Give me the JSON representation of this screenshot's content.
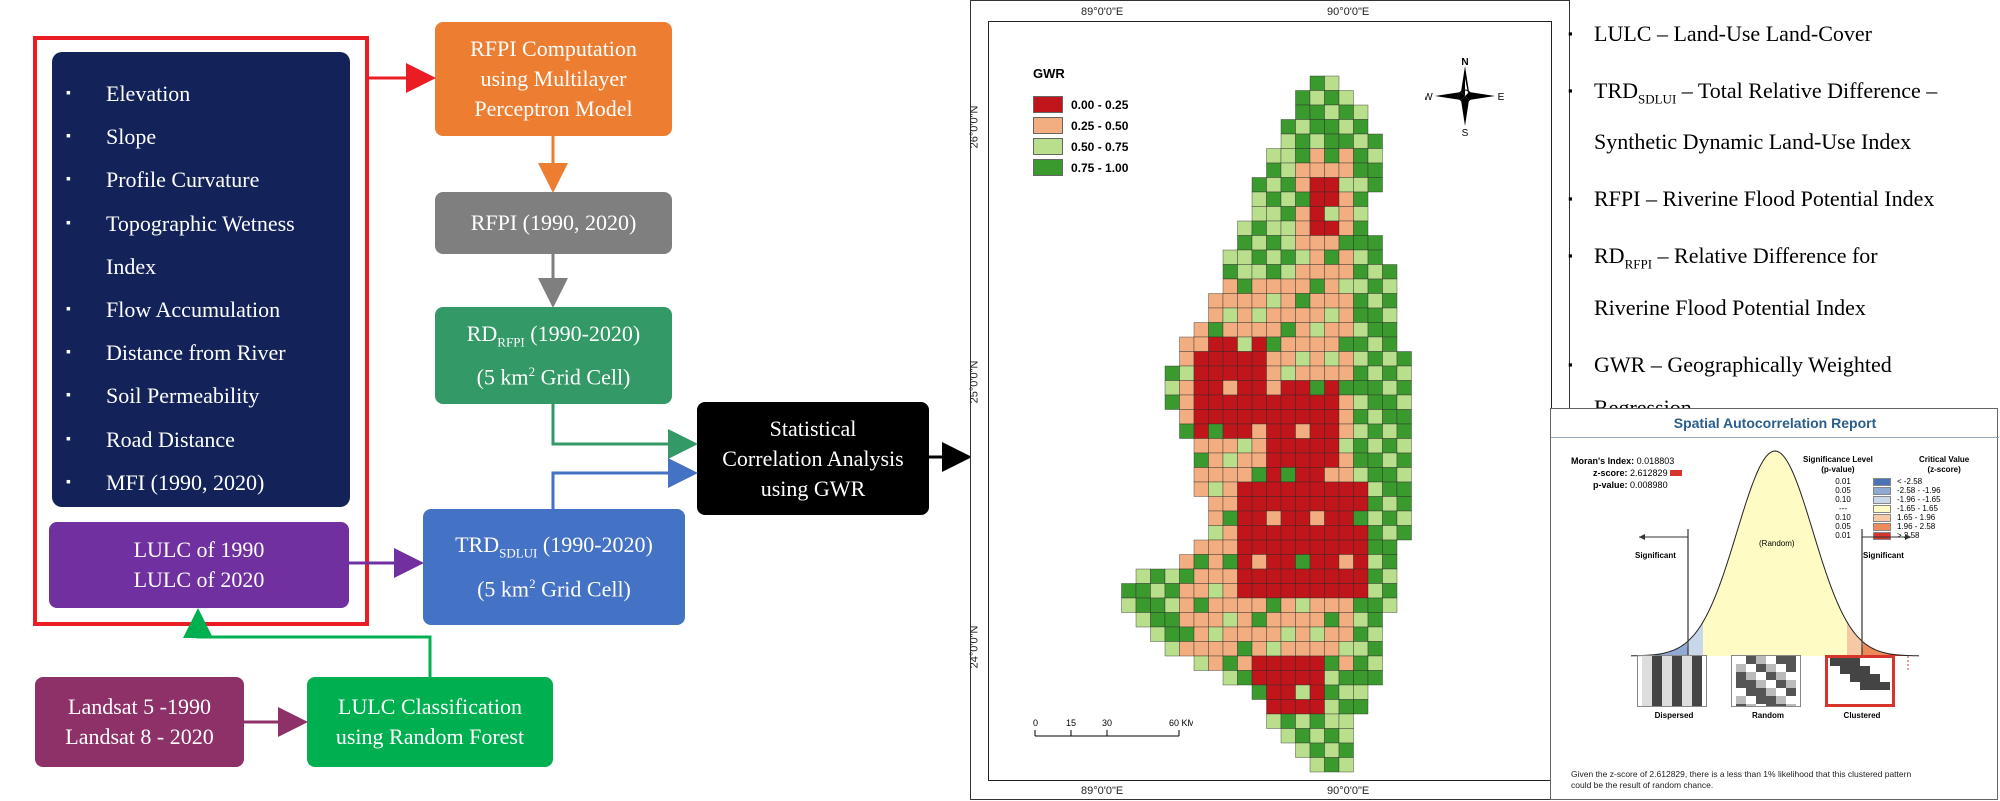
{
  "flowchart": {
    "factors": [
      "Elevation",
      "Slope",
      "Profile Curvature",
      "Topographic Wetness",
      "Index",
      "Flow Accumulation",
      "Distance from River",
      "Soil Permeability",
      "Road Distance",
      "MFI (1990, 2020)"
    ],
    "bullet": "▪",
    "lulc_years": [
      "LULC of 1990",
      "LULC of 2020"
    ],
    "rfpi_computation": [
      "RFPI Computation",
      "using Multilayer",
      "Perceptron Model"
    ],
    "rfpi": "RFPI (1990, 2020)",
    "rd_rfpi": {
      "main": "RD",
      "sub": "RFPI",
      "rest": " (1990-2020)",
      "line2": "(5 km",
      "sup": "2",
      "line2_end": " Grid Cell)"
    },
    "trd_sdlui": {
      "main": "TRD",
      "sub": "SDLUI",
      "rest": " (1990-2020)",
      "line2": "(5 km",
      "sup": "2",
      "line2_end": " Grid Cell)"
    },
    "statistical": [
      "Statistical",
      "Correlation Analysis",
      "using GWR"
    ],
    "landsat": [
      "Landsat 5 -1990",
      "Landsat 8 - 2020"
    ],
    "lulc_classification": [
      "LULC Classification",
      "using Random Forest"
    ]
  },
  "map": {
    "legend_title": "GWR",
    "legend": [
      {
        "label": "0.00 - 0.25",
        "color": "#c0161b"
      },
      {
        "label": "0.25 - 0.50",
        "color": "#f2ae80"
      },
      {
        "label": "0.50 - 0.75",
        "color": "#b9df8c"
      },
      {
        "label": "0.75 - 1.00",
        "color": "#3b9a2d"
      }
    ],
    "compass": {
      "n": "N",
      "s": "S",
      "e": "E",
      "w": "W"
    },
    "lon_labels": [
      "89°0'0\"E",
      "90°0'0\"E"
    ],
    "lat_labels": [
      "26°0'0\"N",
      "25°0'0\"N",
      "24°0'0\"N"
    ],
    "scale": {
      "ticks": [
        "0",
        "15",
        "30",
        "60 KM"
      ]
    }
  },
  "abbreviations": [
    {
      "main": "LULC",
      "sub": "",
      "text": " – Land-Use Land-Cover"
    },
    {
      "main": "TRD",
      "sub": "SDLUI",
      "text": "  – Total Relative Difference –",
      "line2": "Synthetic Dynamic Land-Use Index"
    },
    {
      "main": "RFPI",
      "sub": "",
      "text": " – Riverine Flood Potential Index"
    },
    {
      "main": "RD",
      "sub": "RFPI",
      "text": "  – Relative Difference for",
      "line2": "Riverine Flood Potential Index"
    },
    {
      "main": "GWR",
      "sub": "",
      "text": " – Geographically Weighted",
      "line2": "Regression"
    }
  ],
  "report": {
    "title": "Spatial Autocorrelation Report",
    "morans_label": "Moran's Index:",
    "morans_value": "0.018803",
    "z_label": "z-score:",
    "z_value": "2.612829",
    "p_label": "p-value:",
    "p_value": "0.008980",
    "sig_header": [
      "Significance Level",
      "(p-value)"
    ],
    "crit_header": [
      "Critical Value",
      "(z-score)"
    ],
    "table": [
      {
        "p": "0.01",
        "z": "< -2.58",
        "color": "#4a73b5"
      },
      {
        "p": "0.05",
        "z": "-2.58 - -1.96",
        "color": "#8eaad3"
      },
      {
        "p": "0.10",
        "z": "-1.96 - -1.65",
        "color": "#c9d7ea"
      },
      {
        "p": "---",
        "z": "-1.65 - 1.65",
        "color": "#fefcc4"
      },
      {
        "p": "0.10",
        "z": "1.65 - 1.96",
        "color": "#f6c8a4"
      },
      {
        "p": "0.05",
        "z": "1.96 - 2.58",
        "color": "#ec8a5c"
      },
      {
        "p": "0.01",
        "z": "> 2.58",
        "color": "#d7352b"
      }
    ],
    "significant_left": "Significant",
    "random": "(Random)",
    "significant_right": "Significant",
    "patterns": [
      "Dispersed",
      "Random",
      "Clustered"
    ],
    "conclusion": [
      "Given the z-score of 2.612829, there is a less than 1% likelihood that this clustered pattern",
      "could be the result of random chance."
    ]
  }
}
